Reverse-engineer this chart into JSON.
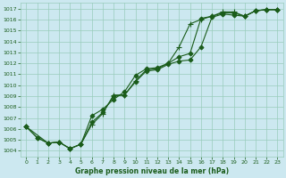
{
  "xlabel": "Graphe pression niveau de la mer (hPa)",
  "bg_color": "#cce8f0",
  "grid_color": "#99ccbb",
  "line_color": "#1a5c1a",
  "xlim": [
    -0.5,
    23.5
  ],
  "ylim": [
    1003.5,
    1017.5
  ],
  "xticks": [
    0,
    1,
    2,
    3,
    4,
    5,
    6,
    7,
    8,
    9,
    10,
    11,
    12,
    13,
    14,
    15,
    16,
    17,
    18,
    19,
    20,
    21,
    22,
    23
  ],
  "yticks": [
    1004,
    1005,
    1006,
    1007,
    1008,
    1009,
    1010,
    1011,
    1012,
    1013,
    1014,
    1015,
    1016,
    1017
  ],
  "series": [
    {
      "x": [
        0,
        1,
        2,
        3,
        4,
        5,
        6,
        7,
        8,
        9,
        10,
        11,
        12,
        13,
        14,
        15,
        16,
        17,
        18,
        19,
        20,
        21,
        22,
        23
      ],
      "y": [
        1006.2,
        1005.2,
        1004.7,
        1004.8,
        1004.2,
        1004.6,
        1006.6,
        1007.5,
        1009.0,
        1009.1,
        1010.3,
        1011.3,
        1011.4,
        1011.9,
        1012.2,
        1012.3,
        1013.5,
        1016.2,
        1016.5,
        1016.4,
        1016.3,
        1016.8,
        1016.9,
        1016.9
      ],
      "marker": "D",
      "markersize": 2.5,
      "lw": 0.8
    },
    {
      "x": [
        0,
        1,
        2,
        3,
        4,
        5,
        6,
        7,
        8,
        9,
        10,
        11,
        12,
        13,
        14,
        15,
        16,
        17,
        18,
        19,
        20,
        21,
        22,
        23
      ],
      "y": [
        1006.2,
        1005.2,
        1004.7,
        1004.8,
        1004.2,
        1004.6,
        1007.2,
        1007.8,
        1008.7,
        1009.4,
        1010.9,
        1011.5,
        1011.6,
        1012.0,
        1012.6,
        1012.9,
        1016.1,
        1016.3,
        1016.6,
        1016.6,
        1016.3,
        1016.8,
        1016.9,
        1016.9
      ],
      "marker": "D",
      "markersize": 2.5,
      "lw": 0.8
    },
    {
      "x": [
        0,
        2,
        3,
        4,
        5,
        6,
        7,
        8,
        9,
        10,
        11,
        12,
        13,
        14,
        15,
        16,
        17,
        18,
        19,
        20,
        21,
        22,
        23
      ],
      "y": [
        1006.2,
        1004.7,
        1004.8,
        1004.2,
        1004.6,
        1006.4,
        1007.4,
        1009.1,
        1009.1,
        1010.4,
        1011.4,
        1011.5,
        1012.0,
        1013.5,
        1015.6,
        1016.0,
        1016.3,
        1016.7,
        1016.7,
        1016.3,
        1016.8,
        1016.9,
        1016.9
      ],
      "marker": "+",
      "markersize": 4,
      "lw": 0.8
    }
  ]
}
